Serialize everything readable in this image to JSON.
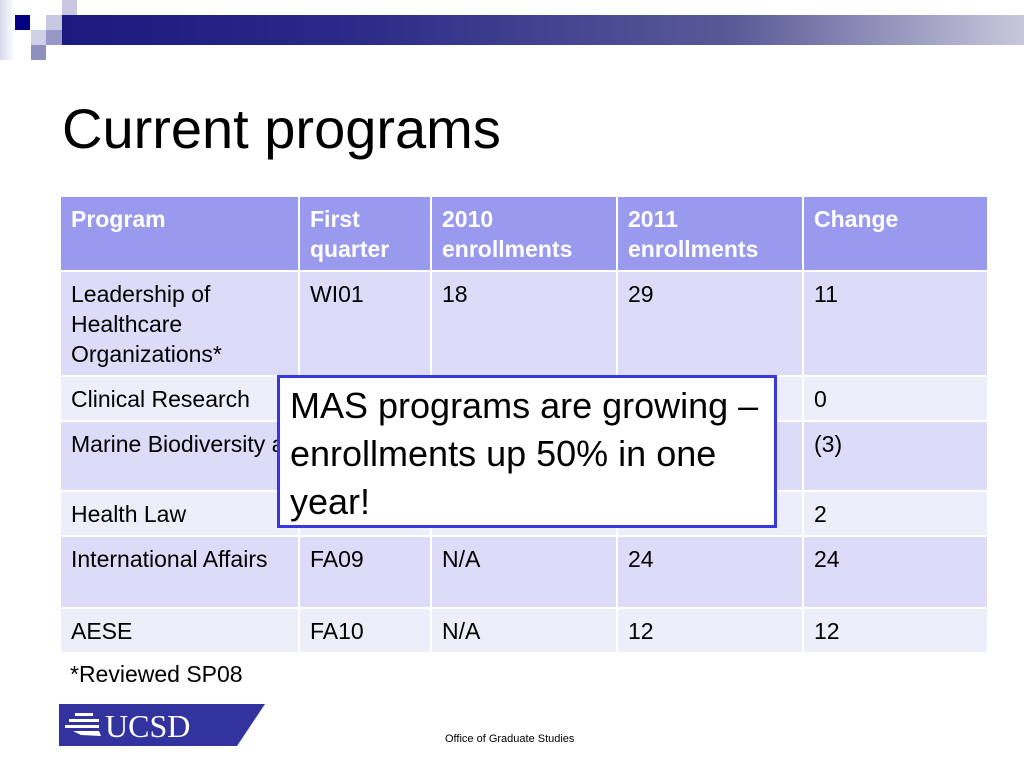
{
  "slide": {
    "title": "Current programs",
    "table": {
      "headers": [
        "Program",
        "First quarter",
        "2010 enrollments",
        "2011 enrollments",
        "Change"
      ],
      "rows": [
        [
          "Leadership of Healthcare Organizations*",
          "WI01",
          "18",
          "29",
          "11"
        ],
        [
          "Clinical Research",
          "",
          "",
          "",
          "0"
        ],
        [
          "Marine Biodiversity and Conservation",
          "",
          "",
          "",
          "(3)"
        ],
        [
          "Health Law",
          "",
          "",
          "",
          "2"
        ],
        [
          "International Affairs",
          "FA09",
          "N/A",
          "24",
          "24"
        ],
        [
          "AESE",
          "FA10",
          "N/A",
          "12",
          "12"
        ]
      ]
    },
    "callout": "MAS programs are growing – enrollments up 50% in one year!",
    "footnote": "*Reviewed SP08",
    "logo_text": "UCSD",
    "footer": "Office of Graduate Studies"
  },
  "colors": {
    "header": "#9999ee",
    "row_odd": "#dcdcf8",
    "row_even": "#eeeefb",
    "callout_border": "#3838e0",
    "brand": "#3333a0"
  }
}
